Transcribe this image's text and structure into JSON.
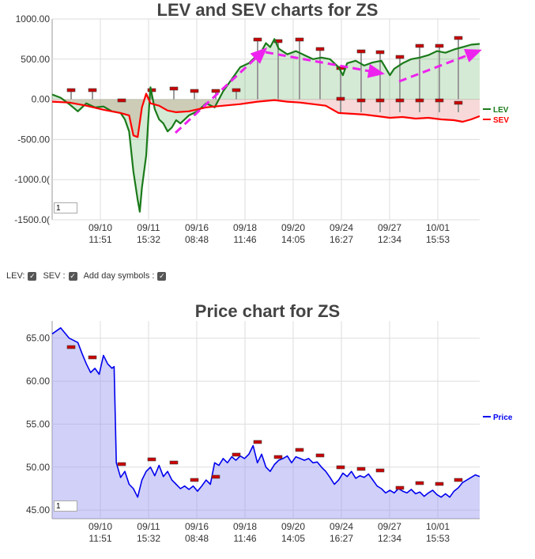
{
  "lev_chart": {
    "title": "LEV and SEV charts for ZS",
    "zoom_value": "1",
    "y_ticks": [
      "1000.00",
      "500.00",
      "0.00",
      "-500.00",
      "-1000.0(",
      "-1500.0("
    ],
    "legend": [
      {
        "name": "LEV",
        "color": "#1a7a1a"
      },
      {
        "name": "SEV",
        "color": "#ff0000"
      }
    ]
  },
  "controls": {
    "lev_label": "LEV:",
    "sev_label": "SEV :",
    "day_label": "Add day symbols :"
  },
  "price_chart": {
    "title": "Price chart for ZS",
    "zoom_value": "1",
    "y_ticks": [
      "65.00",
      "60.00",
      "55.00",
      "50.00",
      "45.00"
    ],
    "legend": [
      {
        "name": "Price",
        "color": "#0000ee"
      }
    ]
  },
  "x_ticks": [
    {
      "date": "09/10",
      "time": "11:51"
    },
    {
      "date": "09/11",
      "time": "15:32"
    },
    {
      "date": "09/16",
      "time": "08:48"
    },
    {
      "date": "09/18",
      "time": "11:46"
    },
    {
      "date": "09/20",
      "time": "14:05"
    },
    {
      "date": "09/24",
      "time": "16:27"
    },
    {
      "date": "09/27",
      "time": "12:34"
    },
    {
      "date": "10/01",
      "time": "15:53"
    }
  ],
  "chart_data": [
    {
      "type": "line",
      "title": "LEV and SEV charts for ZS",
      "ylim": [
        -1500,
        1000
      ],
      "x_index_range": [
        0,
        100
      ],
      "series": [
        {
          "name": "LEV",
          "color": "#1a7a1a",
          "points": [
            [
              0,
              60
            ],
            [
              2,
              20
            ],
            [
              4,
              -60
            ],
            [
              6,
              -150
            ],
            [
              8,
              -50
            ],
            [
              10,
              -100
            ],
            [
              12,
              -90
            ],
            [
              14,
              -150
            ],
            [
              16,
              -170
            ],
            [
              17,
              -250
            ],
            [
              18,
              -400
            ],
            [
              19,
              -900
            ],
            [
              20,
              -1250
            ],
            [
              20.5,
              -1400
            ],
            [
              21,
              -1100
            ],
            [
              22,
              -700
            ],
            [
              22.5,
              -250
            ],
            [
              23,
              150
            ],
            [
              24,
              -120
            ],
            [
              25,
              -250
            ],
            [
              26,
              -300
            ],
            [
              27,
              -400
            ],
            [
              28,
              -350
            ],
            [
              29,
              -260
            ],
            [
              30,
              -300
            ],
            [
              32,
              -200
            ],
            [
              34,
              -150
            ],
            [
              36,
              -50
            ],
            [
              38,
              -100
            ],
            [
              40,
              100
            ],
            [
              42,
              250
            ],
            [
              44,
              400
            ],
            [
              46,
              450
            ],
            [
              48,
              550
            ],
            [
              49,
              600
            ],
            [
              50,
              700
            ],
            [
              51,
              650
            ],
            [
              52,
              750
            ],
            [
              53,
              630
            ],
            [
              55,
              560
            ],
            [
              57,
              600
            ],
            [
              59,
              550
            ],
            [
              61,
              500
            ],
            [
              63,
              520
            ],
            [
              65,
              500
            ],
            [
              67,
              400
            ],
            [
              68,
              300
            ],
            [
              69,
              450
            ],
            [
              71,
              480
            ],
            [
              73,
              420
            ],
            [
              75,
              460
            ],
            [
              77,
              480
            ],
            [
              79,
              300
            ],
            [
              80,
              380
            ],
            [
              82,
              450
            ],
            [
              84,
              500
            ],
            [
              86,
              520
            ],
            [
              88,
              550
            ],
            [
              90,
              600
            ],
            [
              92,
              580
            ],
            [
              94,
              620
            ],
            [
              96,
              650
            ],
            [
              98,
              680
            ],
            [
              100,
              690
            ]
          ]
        },
        {
          "name": "SEV",
          "color": "#ff0000",
          "points": [
            [
              0,
              -30
            ],
            [
              4,
              -40
            ],
            [
              8,
              -80
            ],
            [
              12,
              -130
            ],
            [
              16,
              -170
            ],
            [
              18,
              -200
            ],
            [
              19,
              -450
            ],
            [
              20,
              -470
            ],
            [
              21,
              -100
            ],
            [
              22,
              70
            ],
            [
              23,
              -50
            ],
            [
              25,
              -80
            ],
            [
              27,
              -140
            ],
            [
              29,
              -160
            ],
            [
              32,
              -150
            ],
            [
              36,
              -100
            ],
            [
              40,
              -80
            ],
            [
              44,
              -60
            ],
            [
              48,
              -30
            ],
            [
              50,
              -20
            ],
            [
              52,
              -10
            ],
            [
              55,
              -30
            ],
            [
              58,
              -40
            ],
            [
              61,
              -60
            ],
            [
              64,
              -80
            ],
            [
              67,
              -170
            ],
            [
              70,
              -180
            ],
            [
              73,
              -190
            ],
            [
              76,
              -210
            ],
            [
              79,
              -230
            ],
            [
              82,
              -220
            ],
            [
              85,
              -240
            ],
            [
              88,
              -230
            ],
            [
              91,
              -250
            ],
            [
              94,
              -260
            ],
            [
              96,
              -280
            ],
            [
              98,
              -250
            ],
            [
              100,
              -210
            ]
          ]
        }
      ]
    },
    {
      "type": "area",
      "title": "Price chart for ZS",
      "ylim": [
        44,
        67
      ],
      "x_index_range": [
        0,
        100
      ],
      "series": [
        {
          "name": "Price",
          "color": "#0000ee",
          "points": [
            [
              0,
              65.5
            ],
            [
              2,
              66.2
            ],
            [
              4,
              65.0
            ],
            [
              6,
              64.5
            ],
            [
              7,
              63.2
            ],
            [
              8,
              62.0
            ],
            [
              9,
              61.0
            ],
            [
              10,
              61.5
            ],
            [
              11,
              60.8
            ],
            [
              12,
              63.0
            ],
            [
              13,
              62.0
            ],
            [
              14,
              61.5
            ],
            [
              14.5,
              61.7
            ],
            [
              15,
              50.5
            ],
            [
              16,
              48.8
            ],
            [
              17,
              49.5
            ],
            [
              18,
              48.0
            ],
            [
              19,
              47.5
            ],
            [
              20,
              46.5
            ],
            [
              21,
              48.5
            ],
            [
              22,
              49.5
            ],
            [
              23,
              50.0
            ],
            [
              24,
              49.0
            ],
            [
              25,
              50.2
            ],
            [
              26,
              48.9
            ],
            [
              27,
              49.5
            ],
            [
              28,
              48.5
            ],
            [
              29,
              48.0
            ],
            [
              30,
              47.5
            ],
            [
              31,
              47.8
            ],
            [
              32,
              47.4
            ],
            [
              33,
              47.8
            ],
            [
              34,
              47.2
            ],
            [
              35,
              47.8
            ],
            [
              36,
              48.5
            ],
            [
              37,
              48.0
            ],
            [
              38,
              50.5
            ],
            [
              39,
              50.2
            ],
            [
              40,
              51.0
            ],
            [
              41,
              50.5
            ],
            [
              42,
              51.2
            ],
            [
              43,
              50.8
            ],
            [
              44,
              51.3
            ],
            [
              45,
              51.0
            ],
            [
              46,
              51.5
            ],
            [
              47,
              52.5
            ],
            [
              48,
              50.5
            ],
            [
              49,
              51.5
            ],
            [
              50,
              50.0
            ],
            [
              51,
              49.5
            ],
            [
              52,
              50.3
            ],
            [
              53,
              50.8
            ],
            [
              54,
              51.0
            ],
            [
              55,
              51.3
            ],
            [
              56,
              50.5
            ],
            [
              57,
              51.2
            ],
            [
              58,
              51.0
            ],
            [
              59,
              50.8
            ],
            [
              60,
              51.0
            ],
            [
              61,
              50.5
            ],
            [
              62,
              50.6
            ],
            [
              63,
              50.0
            ],
            [
              64,
              49.5
            ],
            [
              65,
              48.8
            ],
            [
              66,
              48.0
            ],
            [
              67,
              48.5
            ],
            [
              68,
              49.3
            ],
            [
              69,
              48.9
            ],
            [
              70,
              49.5
            ],
            [
              71,
              48.7
            ],
            [
              72,
              49.0
            ],
            [
              73,
              48.8
            ],
            [
              74,
              49.2
            ],
            [
              75,
              48.5
            ],
            [
              76,
              47.8
            ],
            [
              77,
              47.5
            ],
            [
              78,
              47.0
            ],
            [
              79,
              47.3
            ],
            [
              80,
              47.0
            ],
            [
              81,
              47.5
            ],
            [
              82,
              47.2
            ],
            [
              83,
              47.0
            ],
            [
              84,
              47.4
            ],
            [
              85,
              46.9
            ],
            [
              86,
              47.1
            ],
            [
              87,
              46.6
            ],
            [
              88,
              47.0
            ],
            [
              89,
              47.3
            ],
            [
              90,
              46.8
            ],
            [
              91,
              46.5
            ],
            [
              92,
              46.9
            ],
            [
              93,
              46.5
            ],
            [
              94,
              47.2
            ],
            [
              95,
              47.6
            ],
            [
              96,
              48.2
            ],
            [
              97,
              48.5
            ],
            [
              98,
              48.8
            ],
            [
              99,
              49.1
            ],
            [
              100,
              48.9
            ]
          ]
        }
      ]
    }
  ]
}
